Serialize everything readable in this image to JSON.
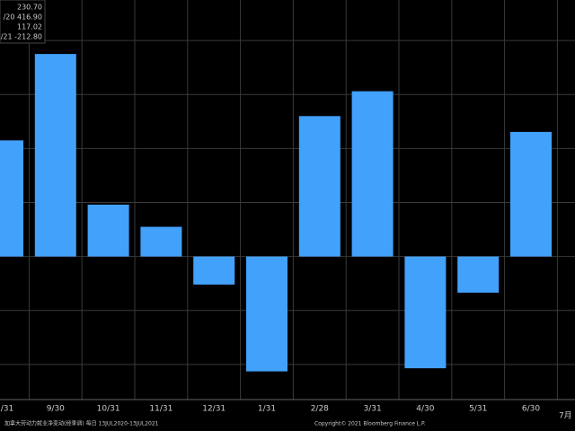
{
  "chart_data": {
    "type": "bar",
    "categories": [
      "/31",
      "9/30",
      "10/31",
      "11/31",
      "12/31",
      "1/31",
      "2/28",
      "3/31",
      "4/30",
      "5/31",
      "6/30"
    ],
    "values": [
      215,
      375,
      96,
      55,
      -52,
      -212.8,
      260,
      306,
      -207,
      -67,
      230.7
    ],
    "color": "#42a1fb",
    "ylim": [
      -265,
      475
    ],
    "yticks": [
      -200,
      -100,
      0,
      100,
      200,
      300,
      400
    ],
    "grid": true,
    "legend_lines": [
      "230.70",
      "/20 416.90",
      "117.02",
      "/21 -212.80"
    ],
    "footer_left": "加拿大劳动力就业净变动(经季调)  每日  13JUL2020-13JUL2021",
    "footer_right": "Copyright© 2021 Bloomberg Finance L.P.",
    "x_axis_period": "7月"
  }
}
